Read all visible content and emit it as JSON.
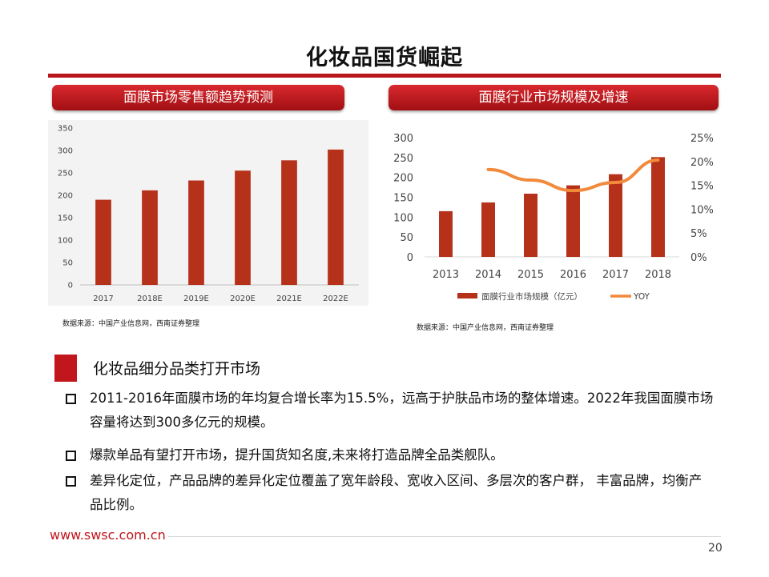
{
  "title": "化妆品国货崛起",
  "left_panel": {
    "heading": "面膜市场零售额趋势预测",
    "source": "数据来源：中国产业信息网，西南证券整理"
  },
  "right_panel": {
    "heading": "面膜行业市场规模及增速",
    "source": "数据来源：中国产业信息网，西南证券整理"
  },
  "chart_data": [
    {
      "type": "bar",
      "categories": [
        "2017",
        "2018E",
        "2019E",
        "2020E",
        "2021E",
        "2022E"
      ],
      "values": [
        190,
        211,
        233,
        255,
        278,
        302
      ],
      "ylim": [
        0,
        350
      ],
      "yticks": [
        0,
        50,
        100,
        150,
        200,
        250,
        300,
        350
      ],
      "grid": false,
      "colors": {
        "bar": "#b5311a"
      }
    },
    {
      "type": "bar+line",
      "categories": [
        "2013",
        "2014",
        "2015",
        "2016",
        "2017",
        "2018"
      ],
      "series": [
        {
          "name": "面膜行业市场规模（亿元）",
          "type": "bar",
          "axis": "left",
          "values": [
            115,
            137,
            159,
            180,
            208,
            251
          ],
          "color": "#b5311a"
        },
        {
          "name": "YOY",
          "type": "line",
          "axis": "right",
          "values": [
            null,
            18.3,
            16.1,
            13.9,
            15.6,
            20.3
          ],
          "color": "#f28a3c"
        }
      ],
      "y_left": {
        "ylim": [
          0,
          300
        ],
        "ticks": [
          "0",
          "50",
          "100",
          "150",
          "200",
          "250",
          "300"
        ]
      },
      "y_right": {
        "ylim": [
          0,
          25
        ],
        "ticks": [
          "0%",
          "5%",
          "10%",
          "15%",
          "20%",
          "25%"
        ]
      },
      "legend": "bottom",
      "grid": false
    }
  ],
  "section": {
    "title": "化妆品细分品类打开市场",
    "bullets": [
      "2011-2016年面膜市场的年均复合增长率为15.5%，远高于护肤品市场的整体增速。2022年我国面膜市场容量将达到300多亿元的规模。",
      "爆款单品有望打开市场，提升国货知名度,未来将打造品牌全品类舰队。",
      "差异化定位，产品品牌的差异化定位覆盖了宽年龄段、宽收入区间、多层次的客户群， 丰富品牌，均衡产品比例。"
    ]
  },
  "footer": {
    "url": "www.swsc.com.cn",
    "page_number": "20"
  },
  "colors": {
    "accent_red": "#b7161c",
    "bar": "#b5311a",
    "line": "#f28a3c"
  }
}
